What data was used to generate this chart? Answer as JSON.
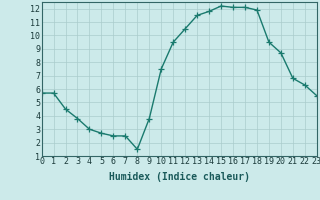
{
  "xlabel": "Humidex (Indice chaleur)",
  "x": [
    0,
    1,
    2,
    3,
    4,
    5,
    6,
    7,
    8,
    9,
    10,
    11,
    12,
    13,
    14,
    15,
    16,
    17,
    18,
    19,
    20,
    21,
    22,
    23
  ],
  "y": [
    5.7,
    5.7,
    4.5,
    3.8,
    3.0,
    2.7,
    2.5,
    2.5,
    1.5,
    3.8,
    7.5,
    9.5,
    10.5,
    11.5,
    11.8,
    12.2,
    12.1,
    12.1,
    11.9,
    9.5,
    8.7,
    6.8,
    6.3,
    5.5
  ],
  "line_color": "#1a7a6e",
  "marker": "+",
  "markersize": 4,
  "linewidth": 1.0,
  "bg_color": "#cceaea",
  "grid_color": "#aacccc",
  "xlim": [
    0,
    23
  ],
  "ylim": [
    1,
    12.5
  ],
  "xtick_labels": [
    "0",
    "1",
    "2",
    "3",
    "4",
    "5",
    "6",
    "7",
    "8",
    "9",
    "10",
    "11",
    "12",
    "13",
    "14",
    "15",
    "16",
    "17",
    "18",
    "19",
    "20",
    "21",
    "22",
    "23"
  ],
  "ytick_vals": [
    1,
    2,
    3,
    4,
    5,
    6,
    7,
    8,
    9,
    10,
    11,
    12
  ],
  "xlabel_fontsize": 7,
  "tick_fontsize": 6
}
